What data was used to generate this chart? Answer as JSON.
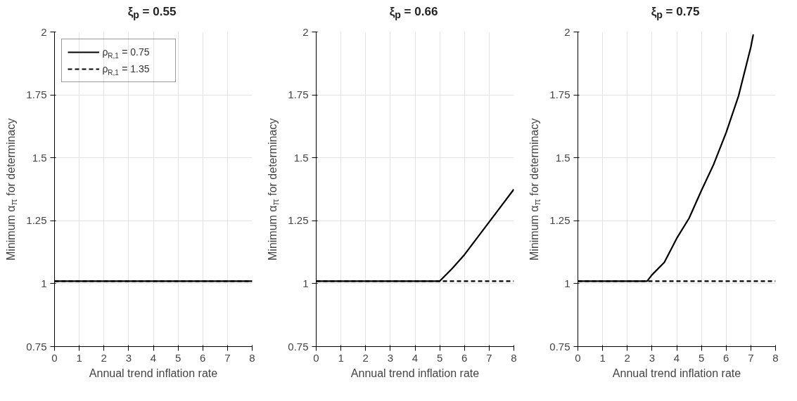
{
  "chart_data": [
    {
      "type": "line",
      "title": "ξ$_{p}$ = 0.55",
      "xlabel": "Annual trend inflation rate",
      "ylabel": "Minimum α$_{π}$ for determinacy",
      "xlim": [
        0,
        8
      ],
      "ylim": [
        0.75,
        2
      ],
      "xticks": [
        0,
        1,
        2,
        3,
        4,
        5,
        6,
        7,
        8
      ],
      "yticks": [
        0.75,
        1,
        1.25,
        1.5,
        1.75,
        2
      ],
      "grid": true,
      "legend": "top left",
      "series": [
        {
          "name": "ρ$_{R,1}$ = 0.75",
          "color": "#000000",
          "line_style": "solid",
          "x": [
            0,
            8
          ],
          "values": [
            1.01,
            1.01
          ]
        },
        {
          "name": "ρ$_{R,1}$ = 1.35",
          "color": "#000000",
          "line_style": "dashed",
          "x": [
            0,
            8
          ],
          "values": [
            1.01,
            1.01
          ]
        }
      ]
    },
    {
      "type": "line",
      "title": "ξ$_{p}$ = 0.66",
      "xlabel": "Annual trend inflation rate",
      "ylabel": "Minimum α$_{π}$ for determinacy",
      "xlim": [
        0,
        8
      ],
      "ylim": [
        0.75,
        2
      ],
      "xticks": [
        0,
        1,
        2,
        3,
        4,
        5,
        6,
        7,
        8
      ],
      "yticks": [
        0.75,
        1,
        1.25,
        1.5,
        1.75,
        2
      ],
      "grid": true,
      "series": [
        {
          "color": "#000000",
          "line_style": "solid",
          "x": [
            0,
            5,
            5.5,
            6,
            6.5,
            7,
            7.5,
            8
          ],
          "values": [
            1.01,
            1.01,
            1.06,
            1.115,
            1.18,
            1.245,
            1.31,
            1.375
          ]
        },
        {
          "color": "#000000",
          "line_style": "dashed",
          "x": [
            0,
            8
          ],
          "values": [
            1.01,
            1.01
          ]
        }
      ]
    },
    {
      "type": "line",
      "title": "ξ$_{p}$ = 0.75",
      "xlabel": "Annual trend inflation rate",
      "ylabel": "Minimum α$_{π}$ for determinacy",
      "xlim": [
        0,
        8
      ],
      "ylim": [
        0.75,
        2
      ],
      "xticks": [
        0,
        1,
        2,
        3,
        4,
        5,
        6,
        7,
        8
      ],
      "yticks": [
        0.75,
        1,
        1.25,
        1.5,
        1.75,
        2
      ],
      "grid": true,
      "series": [
        {
          "color": "#000000",
          "line_style": "solid",
          "x": [
            0,
            2.8,
            3,
            3.5,
            4,
            4.5,
            5,
            5.5,
            6,
            6.5,
            7,
            7.1
          ],
          "values": [
            1.01,
            1.01,
            1.035,
            1.085,
            1.18,
            1.26,
            1.37,
            1.475,
            1.6,
            1.745,
            1.94,
            1.99
          ]
        },
        {
          "color": "#000000",
          "line_style": "dashed",
          "x": [
            0,
            8
          ],
          "values": [
            1.01,
            1.01
          ]
        }
      ]
    }
  ]
}
